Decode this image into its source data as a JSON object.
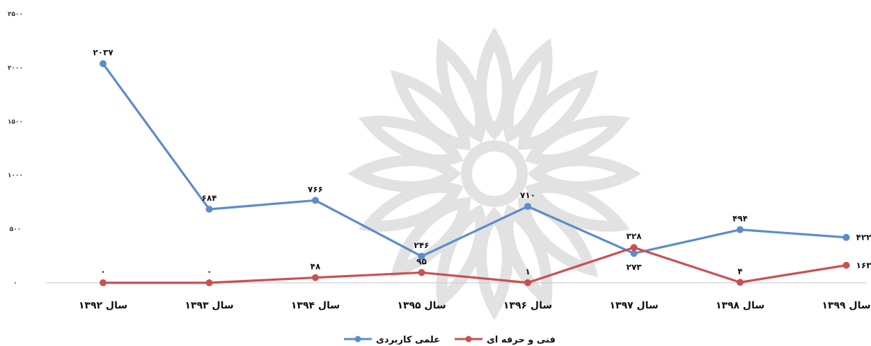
{
  "chart_data": {
    "type": "line",
    "categories": [
      "سال ۱۳۹۲",
      "سال ۱۳۹۳",
      "سال ۱۳۹۴",
      "سال ۱۳۹۵",
      "سال ۱۳۹۶",
      "سال ۱۳۹۷",
      "سال ۱۳۹۸",
      "سال ۱۳۹۹"
    ],
    "yticks": [
      {
        "value": 0,
        "label": "۰"
      },
      {
        "value": 500,
        "label": "۵۰۰"
      },
      {
        "value": 1000,
        "label": "۱۰۰۰"
      },
      {
        "value": 1500,
        "label": "۱۵۰۰"
      },
      {
        "value": 2000,
        "label": "۲۰۰۰"
      },
      {
        "value": 2500,
        "label": "۲۵۰۰"
      }
    ],
    "ylim": [
      0,
      2500
    ],
    "grid": false,
    "legend_position": "bottom",
    "series": [
      {
        "name": "علمی کاربردی",
        "color": "#5b8ccb",
        "values": [
          2037,
          684,
          766,
          246,
          710,
          273,
          494,
          422
        ],
        "labels": [
          "۲۰۳۷",
          "۶۸۴",
          "۷۶۶",
          "۲۴۶",
          "۷۱۰",
          "۲۷۳",
          "۴۹۴",
          "۴۲۲"
        ],
        "label_side": [
          "above",
          "above",
          "above",
          "above",
          "above",
          "below",
          "above",
          "right"
        ]
      },
      {
        "name": "فنی و حرفه ای",
        "color": "#c9504f",
        "values": [
          0,
          0,
          48,
          95,
          1,
          328,
          4,
          163
        ],
        "labels": [
          "۰",
          "۰",
          "۴۸",
          "۹۵",
          "۱",
          "۳۲۸",
          "۴",
          "۱۶۳"
        ],
        "label_side": [
          "above",
          "above",
          "above",
          "above",
          "above",
          "above",
          "above",
          "right"
        ]
      }
    ]
  }
}
